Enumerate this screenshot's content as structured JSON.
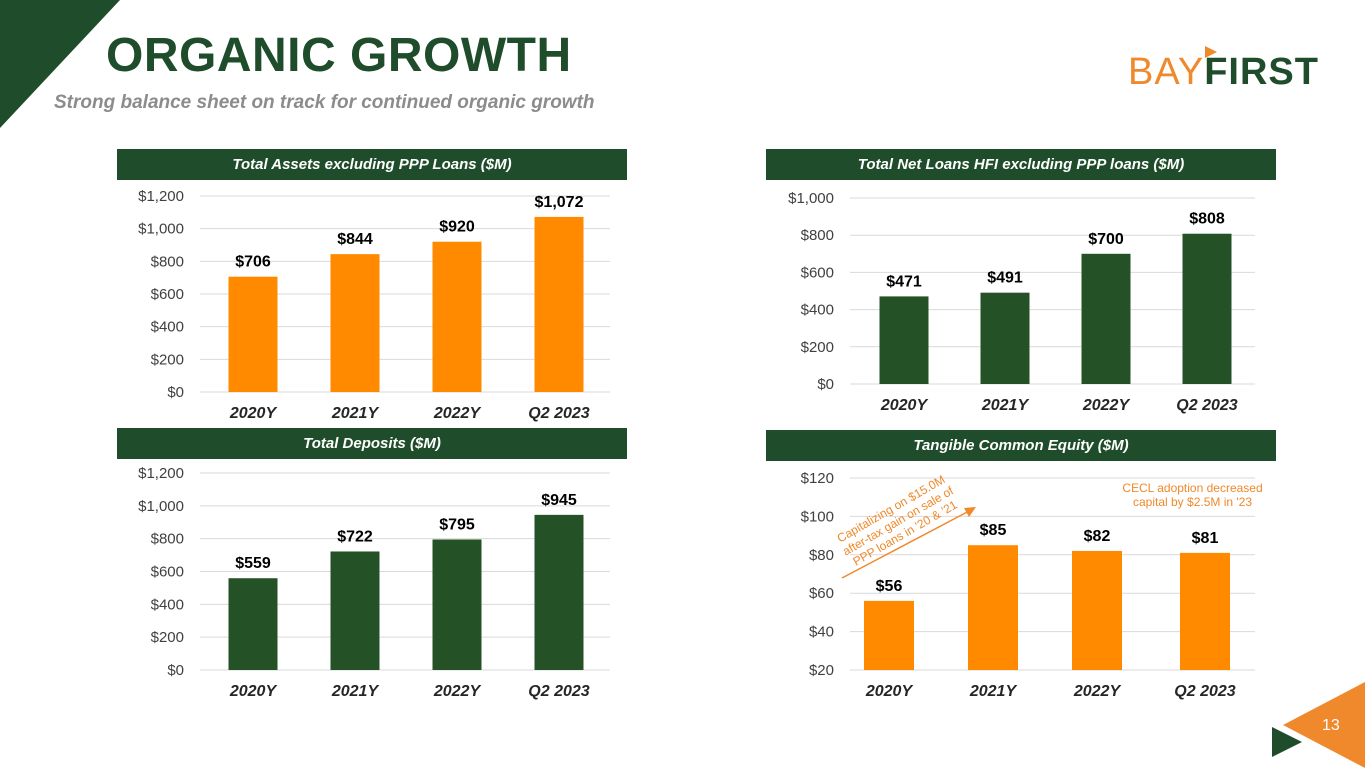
{
  "title": "ORGANIC GROWTH",
  "subtitle": "Strong balance sheet on track for continued organic growth",
  "logo": {
    "part1": "BAY",
    "part2": "FIRST"
  },
  "page_number": "13",
  "colors": {
    "green": "#1f4d2b",
    "bar_green": "#245226",
    "orange": "#ff8a00",
    "accent_orange": "#f0892b",
    "grid": "#d9d9d9"
  },
  "chart_data": [
    {
      "type": "bar",
      "title": "Total Assets excluding PPP Loans ($M)",
      "categories": [
        "2020Y",
        "2021Y",
        "2022Y",
        "Q2 2023"
      ],
      "values": [
        706,
        844,
        920,
        1072
      ],
      "value_labels": [
        "$706",
        "$844",
        "$920",
        "$1,072"
      ],
      "ylim": [
        0,
        1200
      ],
      "yticks": [
        0,
        200,
        400,
        600,
        800,
        1000,
        1200
      ],
      "ytick_labels": [
        "$0",
        "$200",
        "$400",
        "$600",
        "$800",
        "$1,000",
        "$1,200"
      ],
      "bar_color": "#ff8a00"
    },
    {
      "type": "bar",
      "title": "Total Net Loans HFI excluding PPP loans  ($M)",
      "categories": [
        "2020Y",
        "2021Y",
        "2022Y",
        "Q2 2023"
      ],
      "values": [
        471,
        491,
        700,
        808
      ],
      "value_labels": [
        "$471",
        "$491",
        "$700",
        "$808"
      ],
      "ylim": [
        0,
        1000
      ],
      "yticks": [
        0,
        200,
        400,
        600,
        800,
        1000
      ],
      "ytick_labels": [
        "$0",
        "$200",
        "$400",
        "$600",
        "$800",
        "$1,000"
      ],
      "bar_color": "#245226"
    },
    {
      "type": "bar",
      "title": "Total Deposits ($M)",
      "categories": [
        "2020Y",
        "2021Y",
        "2022Y",
        "Q2 2023"
      ],
      "values": [
        559,
        722,
        795,
        945
      ],
      "value_labels": [
        "$559",
        "$722",
        "$795",
        "$945"
      ],
      "ylim": [
        0,
        1200
      ],
      "yticks": [
        0,
        200,
        400,
        600,
        800,
        1000,
        1200
      ],
      "ytick_labels": [
        "$0",
        "$200",
        "$400",
        "$600",
        "$800",
        "$1,000",
        "$1,200"
      ],
      "bar_color": "#245226"
    },
    {
      "type": "bar",
      "title": "Tangible Common Equity ($M)",
      "categories": [
        "2020Y",
        "2021Y",
        "2022Y",
        "Q2 2023"
      ],
      "values": [
        56,
        85,
        82,
        81
      ],
      "value_labels": [
        "$56",
        "$85",
        "$82",
        "$81"
      ],
      "ylim": [
        20,
        120
      ],
      "yticks": [
        20,
        40,
        60,
        80,
        100,
        120
      ],
      "ytick_labels": [
        "$20",
        "$40",
        "$60",
        "$80",
        "$100",
        "$120"
      ],
      "bar_color": "#ff8a00",
      "annotations": [
        "Capitalizing on $15.0M after-tax gain on sale of PPP loans in '20 & '21",
        "CECL adoption decreased capital by $2.5M in '23"
      ]
    }
  ]
}
